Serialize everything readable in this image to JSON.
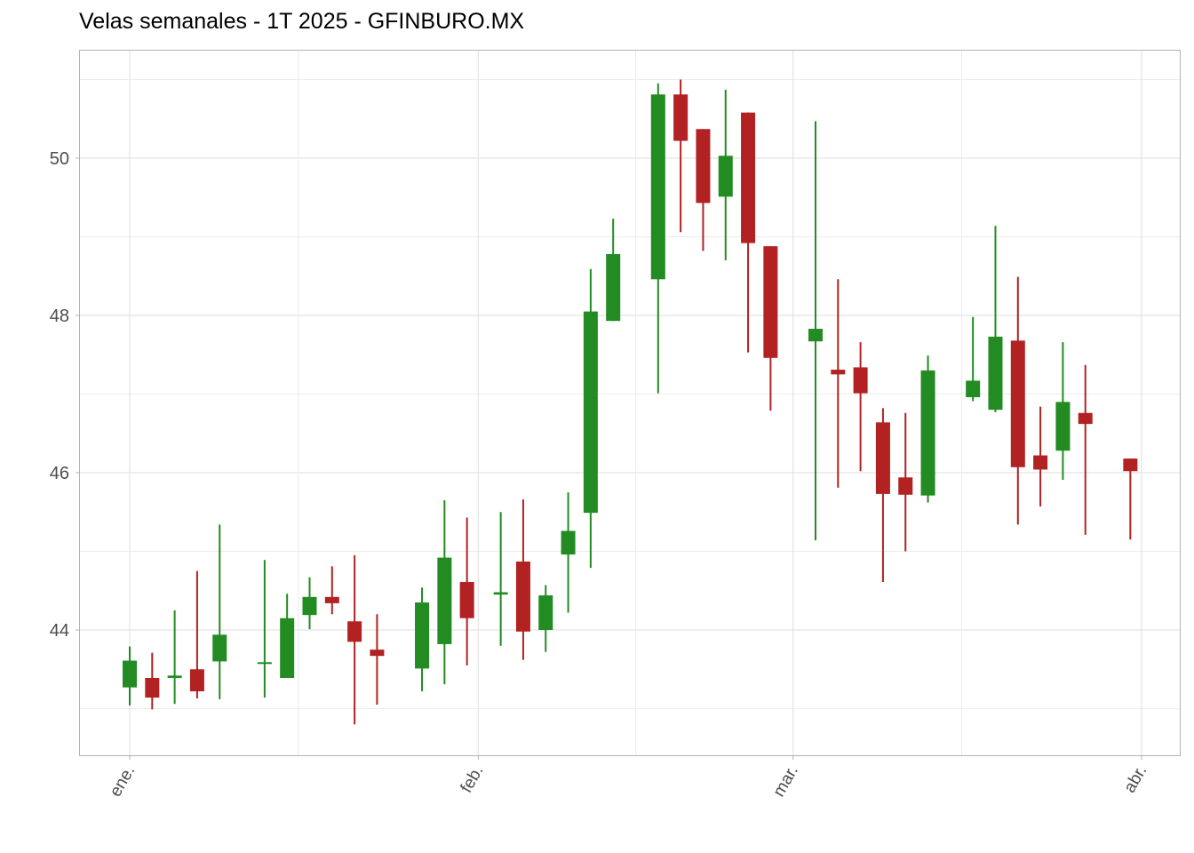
{
  "chart_data": {
    "type": "candlestick",
    "title": "Velas semanales - 1T 2025 - GFINBURO.MX",
    "xlabel": "",
    "ylabel": "",
    "ylim": [
      42.45,
      51.05
    ],
    "xlim": [
      "2024-12-29",
      "2025-04-01"
    ],
    "y_ticks": [
      44,
      46,
      48,
      50
    ],
    "y_tick_labels": [
      "44",
      "46",
      "48",
      "50"
    ],
    "x_ticks": [
      "2025-01-01",
      "2025-02-01",
      "2025-03-01",
      "2025-04-01"
    ],
    "x_tick_labels": [
      "ene.",
      "feb.",
      "mar.",
      "abr."
    ],
    "grid": true,
    "colors": {
      "up": "#228B22",
      "down": "#B22222",
      "grid": "#dedede",
      "panel_border": "#b3b3b3"
    },
    "candles": [
      {
        "date": "2025-01-01",
        "open": 43.27,
        "high": 43.79,
        "low": 43.04,
        "close": 43.61
      },
      {
        "date": "2025-01-03",
        "open": 43.39,
        "high": 43.71,
        "low": 42.99,
        "close": 43.14
      },
      {
        "date": "2025-01-05",
        "open": 43.39,
        "high": 44.25,
        "low": 43.06,
        "close": 43.42
      },
      {
        "date": "2025-01-07",
        "open": 43.5,
        "high": 44.75,
        "low": 43.13,
        "close": 43.22
      },
      {
        "date": "2025-01-09",
        "open": 43.6,
        "high": 45.34,
        "low": 43.12,
        "close": 43.94
      },
      {
        "date": "2025-01-13",
        "open": 43.58,
        "high": 44.89,
        "low": 43.14,
        "close": 43.59
      },
      {
        "date": "2025-01-15",
        "open": 43.39,
        "high": 44.46,
        "low": 43.39,
        "close": 44.15
      },
      {
        "date": "2025-01-17",
        "open": 44.19,
        "high": 44.67,
        "low": 44.01,
        "close": 44.42
      },
      {
        "date": "2025-01-19",
        "open": 44.42,
        "high": 44.81,
        "low": 44.2,
        "close": 44.34
      },
      {
        "date": "2025-01-21",
        "open": 44.11,
        "high": 44.95,
        "low": 42.8,
        "close": 43.85
      },
      {
        "date": "2025-01-23",
        "open": 43.75,
        "high": 44.2,
        "low": 43.05,
        "close": 43.67
      },
      {
        "date": "2025-01-27",
        "open": 43.51,
        "high": 44.54,
        "low": 43.22,
        "close": 44.35
      },
      {
        "date": "2025-01-29",
        "open": 43.82,
        "high": 45.65,
        "low": 43.31,
        "close": 44.92
      },
      {
        "date": "2025-01-31",
        "open": 44.61,
        "high": 45.43,
        "low": 43.55,
        "close": 44.15
      },
      {
        "date": "2025-02-03",
        "open": 44.45,
        "high": 45.5,
        "low": 43.8,
        "close": 44.48
      },
      {
        "date": "2025-02-05",
        "open": 44.87,
        "high": 45.66,
        "low": 43.62,
        "close": 43.98
      },
      {
        "date": "2025-02-07",
        "open": 44.0,
        "high": 44.57,
        "low": 43.72,
        "close": 44.44
      },
      {
        "date": "2025-02-09",
        "open": 44.96,
        "high": 45.75,
        "low": 44.22,
        "close": 45.26
      },
      {
        "date": "2025-02-11",
        "open": 45.49,
        "high": 48.59,
        "low": 44.79,
        "close": 48.05
      },
      {
        "date": "2025-02-13",
        "open": 47.93,
        "high": 49.23,
        "low": 47.93,
        "close": 48.78
      },
      {
        "date": "2025-02-17",
        "open": 48.46,
        "high": 50.95,
        "low": 47.01,
        "close": 50.81
      },
      {
        "date": "2025-02-19",
        "open": 50.81,
        "high": 51.0,
        "low": 49.06,
        "close": 50.22
      },
      {
        "date": "2025-02-21",
        "open": 50.37,
        "high": 50.37,
        "low": 48.82,
        "close": 49.43
      },
      {
        "date": "2025-02-23",
        "open": 49.51,
        "high": 50.87,
        "low": 48.7,
        "close": 50.03
      },
      {
        "date": "2025-02-25",
        "open": 50.58,
        "high": 50.58,
        "low": 47.53,
        "close": 48.92
      },
      {
        "date": "2025-02-27",
        "open": 48.88,
        "high": 48.88,
        "low": 46.79,
        "close": 47.46
      },
      {
        "date": "2025-03-03",
        "open": 47.67,
        "high": 50.47,
        "low": 45.14,
        "close": 47.83
      },
      {
        "date": "2025-03-05",
        "open": 47.31,
        "high": 48.46,
        "low": 45.81,
        "close": 47.25
      },
      {
        "date": "2025-03-07",
        "open": 47.34,
        "high": 47.66,
        "low": 46.02,
        "close": 47.01
      },
      {
        "date": "2025-03-09",
        "open": 46.64,
        "high": 46.82,
        "low": 44.61,
        "close": 45.73
      },
      {
        "date": "2025-03-11",
        "open": 45.94,
        "high": 46.76,
        "low": 45.0,
        "close": 45.72
      },
      {
        "date": "2025-03-13",
        "open": 45.71,
        "high": 47.49,
        "low": 45.62,
        "close": 47.3
      },
      {
        "date": "2025-03-17",
        "open": 46.96,
        "high": 47.98,
        "low": 46.91,
        "close": 47.17
      },
      {
        "date": "2025-03-19",
        "open": 46.8,
        "high": 49.14,
        "low": 46.77,
        "close": 47.73
      },
      {
        "date": "2025-03-21",
        "open": 47.68,
        "high": 48.49,
        "low": 45.34,
        "close": 46.07
      },
      {
        "date": "2025-03-23",
        "open": 46.22,
        "high": 46.84,
        "low": 45.57,
        "close": 46.04
      },
      {
        "date": "2025-03-25",
        "open": 46.28,
        "high": 47.66,
        "low": 45.91,
        "close": 46.9
      },
      {
        "date": "2025-03-27",
        "open": 46.76,
        "high": 47.37,
        "low": 45.21,
        "close": 46.62
      },
      {
        "date": "2025-03-31",
        "open": 46.18,
        "high": 46.18,
        "low": 45.15,
        "close": 46.02
      }
    ]
  }
}
